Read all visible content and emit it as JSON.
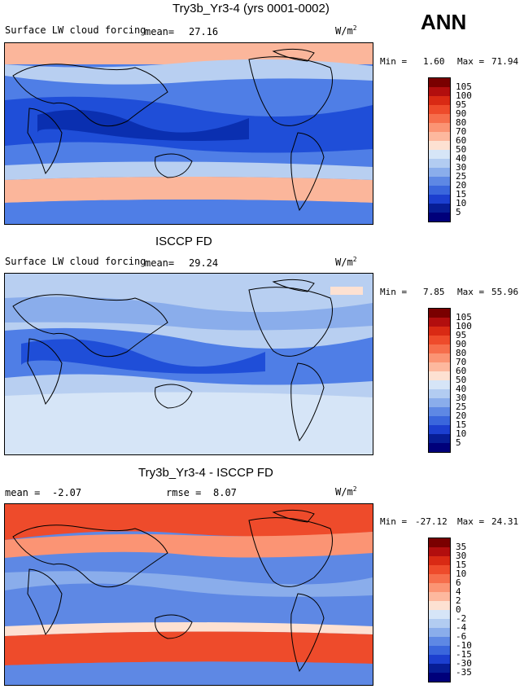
{
  "season_label": "ANN",
  "panels": [
    {
      "title": "Try3b_Yr3-4 (yrs 0001-0002)",
      "variable": "Surface LW cloud forcing",
      "mean_label": "mean=",
      "mean_value": "27.16",
      "units": "W/m",
      "units_sup": "2",
      "min_label": "Min =",
      "min_value": "1.60",
      "max_label": "Max =",
      "max_value": "71.94",
      "colorbar_levels": [
        "105",
        "100",
        "95",
        "90",
        "80",
        "70",
        "60",
        "50",
        "40",
        "30",
        "25",
        "20",
        "15",
        "10",
        "5"
      ]
    },
    {
      "title": "ISCCP FD",
      "variable": "Surface LW cloud forcing",
      "mean_label": "mean=",
      "mean_value": "29.24",
      "units": "W/m",
      "units_sup": "2",
      "min_label": "Min =",
      "min_value": "7.85",
      "max_label": "Max =",
      "max_value": "55.96",
      "colorbar_levels": [
        "105",
        "100",
        "95",
        "90",
        "80",
        "70",
        "60",
        "50",
        "40",
        "30",
        "25",
        "20",
        "15",
        "10",
        "5"
      ]
    },
    {
      "title": "Try3b_Yr3-4 - ISCCP FD",
      "mean_label": "mean =",
      "mean_value": "-2.07",
      "rmse_label": "rmse =",
      "rmse_value": "8.07",
      "units": "W/m",
      "units_sup": "2",
      "min_label": "Min =",
      "min_value": "-27.12",
      "max_label": "Max =",
      "max_value": "24.31",
      "colorbar_levels": [
        "35",
        "30",
        "15",
        "10",
        "6",
        "4",
        "2",
        "0",
        "-2",
        "-4",
        "-6",
        "-10",
        "-15",
        "-30",
        "-35"
      ]
    }
  ],
  "colors": {
    "cb_scale": [
      "#7a0000",
      "#b20e0e",
      "#d92a14",
      "#ee4b2b",
      "#f66e4c",
      "#fb9474",
      "#fdb89e",
      "#fde1d2",
      "#d6e5f7",
      "#b2ccf1",
      "#8aadeb",
      "#5e88e4",
      "#3a66dc",
      "#1c3fcf",
      "#071d95",
      "#00007a"
    ],
    "ocean_deep": "#1f4ed8",
    "ocean_mid": "#4f7ee6",
    "ocean_light": "#b8cff1",
    "warm_band": "#fbb69b",
    "hot_band": "#ee4b2b",
    "coast": "#000000"
  }
}
